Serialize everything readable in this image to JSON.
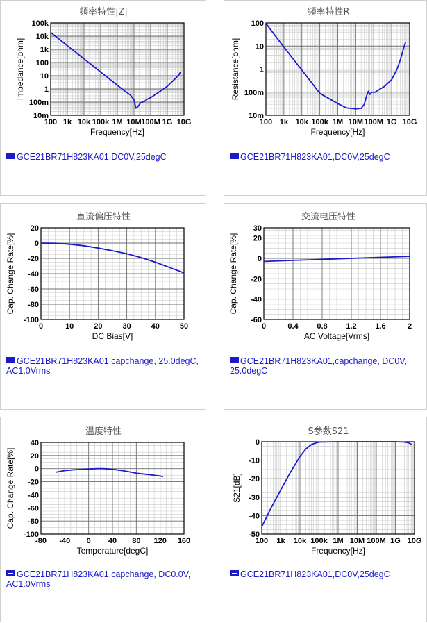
{
  "charts": [
    {
      "id": "c1",
      "title": "頻率特性|Z|",
      "legend": "GCE21BR71H823KA01,DC0V,25degC",
      "chart_data": {
        "type": "line",
        "title": "頻率特性|Z|",
        "xlabel": "Frequency[Hz]",
        "ylabel": "Impedance[ohm]",
        "xscale": "log",
        "yscale": "log",
        "xlim": [
          100,
          10000000000
        ],
        "ylim": [
          0.01,
          100000
        ],
        "xticks": [
          100,
          1000,
          10000,
          100000,
          1000000,
          10000000,
          100000000,
          1000000000,
          10000000000
        ],
        "xticklabels": [
          "100",
          "1k",
          "10k",
          "100k",
          "1M",
          "10M",
          "100M",
          "1G",
          "10G"
        ],
        "yticks": [
          0.01,
          0.1,
          1,
          10,
          100,
          1000,
          10000,
          100000
        ],
        "yticklabels": [
          "10m",
          "100m",
          "1",
          "10",
          "100",
          "1k",
          "10k",
          "100k"
        ],
        "grid": true,
        "series": [
          {
            "color": "#1a1acc",
            "x": [
              100,
              1000,
              10000,
              100000,
              1000000,
              3000000,
              6000000,
              10000000,
              13000000,
              17000000,
              25000000,
              40000000,
              60000000,
              100000000,
              300000000,
              1000000000,
              3000000000,
              5000000000,
              6000000000
            ],
            "y": [
              19000,
              1900,
              190,
              19,
              1.9,
              0.65,
              0.35,
              0.15,
              0.035,
              0.045,
              0.09,
              0.11,
              0.16,
              0.22,
              0.55,
              1.6,
              6,
              12,
              18
            ]
          }
        ]
      }
    },
    {
      "id": "c2",
      "title": "頻率特性R",
      "legend": "GCE21BR71H823KA01,DC0V,25degC",
      "chart_data": {
        "type": "line",
        "title": "頻率特性R",
        "xlabel": "Frequency[Hz]",
        "ylabel": "Resistance[ohm]",
        "xscale": "log",
        "yscale": "log",
        "xlim": [
          100,
          10000000000
        ],
        "ylim": [
          0.01,
          100
        ],
        "xticks": [
          100,
          1000,
          10000,
          100000,
          1000000,
          10000000,
          100000000,
          1000000000,
          10000000000
        ],
        "xticklabels": [
          "100",
          "1k",
          "10k",
          "100k",
          "1M",
          "10M",
          "100M",
          "1G",
          "10G"
        ],
        "yticks": [
          0.01,
          0.1,
          1,
          10,
          100
        ],
        "yticklabels": [
          "10m",
          "100m",
          "1",
          "10",
          "100"
        ],
        "grid": true,
        "series": [
          {
            "color": "#1a1acc",
            "x": [
              100,
              1000,
              10000,
              100000,
              1000000,
              3000000,
              10000000,
              20000000,
              30000000,
              40000000,
              50000000,
              60000000,
              80000000,
              120000000,
              200000000,
              400000000,
              1000000000,
              2000000000,
              3000000000,
              5000000000,
              6000000000
            ],
            "y": [
              95,
              9,
              0.9,
              0.09,
              0.032,
              0.021,
              0.019,
              0.02,
              0.03,
              0.07,
              0.11,
              0.08,
              0.1,
              0.1,
              0.13,
              0.18,
              0.35,
              1,
              2.5,
              10,
              15
            ]
          }
        ]
      }
    },
    {
      "id": "c3",
      "title": "直流偏压特性",
      "legend": "GCE21BR71H823KA01,capchange, 25.0degC, AC1.0Vrms",
      "chart_data": {
        "type": "line",
        "title": "直流偏压特性",
        "xlabel": "DC Bias[V]",
        "ylabel": "Cap. Change Rate[%]",
        "xlim": [
          0,
          50
        ],
        "ylim": [
          -100,
          20
        ],
        "xticks": [
          0,
          10,
          20,
          30,
          40,
          50
        ],
        "yticks": [
          -100,
          -80,
          -60,
          -40,
          -20,
          0,
          20
        ],
        "grid": true,
        "series": [
          {
            "color": "#1a1acc",
            "x": [
              0,
              5,
              10,
              15,
              20,
              25,
              30,
              35,
              40,
              45,
              50
            ],
            "y": [
              0,
              -0.3,
              -1.5,
              -3.5,
              -6.5,
              -10,
              -14,
              -19,
              -25,
              -32,
              -39
            ]
          }
        ]
      }
    },
    {
      "id": "c4",
      "title": "交流电压特性",
      "legend": "GCE21BR71H823KA01,capchange, DC0V, 25.0degC",
      "chart_data": {
        "type": "line",
        "title": "交流电压特性",
        "xlabel": "AC Voltage[Vrms]",
        "ylabel": "Cap. Change Rate[%]",
        "xlim": [
          0,
          2
        ],
        "ylim": [
          -60,
          30
        ],
        "xticks": [
          0,
          0.4,
          0.8,
          1.2,
          1.6,
          2
        ],
        "yticks": [
          -60,
          -40,
          -20,
          0,
          20,
          30
        ],
        "grid": true,
        "series": [
          {
            "color": "#1a1acc",
            "x": [
              0,
              0.4,
              0.8,
              1.2,
              1.6,
              2
            ],
            "y": [
              -3,
              -2,
              -1,
              0,
              1,
              2
            ]
          }
        ]
      }
    },
    {
      "id": "c5",
      "title": "温度特性",
      "legend": "GCE21BR71H823KA01,capchange, DC0.0V, AC1.0Vrms",
      "chart_data": {
        "type": "line",
        "title": "温度特性",
        "xlabel": "Temperature[degC]",
        "ylabel": "Cap. Change Rate[%]",
        "xlim": [
          -80,
          160
        ],
        "ylim": [
          -100,
          40
        ],
        "xticks": [
          -80,
          -40,
          0,
          40,
          80,
          120,
          160
        ],
        "yticks": [
          -100,
          -80,
          -60,
          -40,
          -20,
          0,
          20,
          40
        ],
        "grid": true,
        "series": [
          {
            "color": "#1a1acc",
            "x": [
              -55,
              -40,
              -20,
              0,
              15,
              25,
              40,
              60,
              80,
              100,
              125
            ],
            "y": [
              -5.5,
              -3,
              -1.5,
              -0.5,
              0,
              0,
              -1,
              -3.5,
              -7,
              -9,
              -12
            ]
          }
        ]
      }
    },
    {
      "id": "c6",
      "title": "S参数S21",
      "legend": "GCE21BR71H823KA01,DC0V,25degC",
      "chart_data": {
        "type": "line",
        "title": "S参数S21",
        "xlabel": "Frequency[Hz]",
        "ylabel": "S21[dB]",
        "xscale": "log",
        "xlim": [
          100,
          10000000000
        ],
        "ylim": [
          -50,
          0
        ],
        "xticks": [
          100,
          1000,
          10000,
          100000,
          1000000,
          10000000,
          100000000,
          1000000000,
          10000000000
        ],
        "xticklabels": [
          "100",
          "1k",
          "10k",
          "100k",
          "1M",
          "10M",
          "100M",
          "1G",
          "10G"
        ],
        "yticks": [
          -50,
          -40,
          -30,
          -20,
          -10,
          0
        ],
        "grid": true,
        "series": [
          {
            "color": "#1a1acc",
            "x": [
              100,
              300,
              1000,
              3000,
              10000,
              20000,
              40000,
              70000,
              100000,
              1000000,
              100000000,
              1000000000,
              3000000000,
              5000000000,
              7000000000
            ],
            "y": [
              -46,
              -36,
              -26,
              -17,
              -8,
              -4,
              -1.5,
              -0.6,
              -0.2,
              0,
              0,
              0,
              -0.2,
              -0.6,
              -1.5
            ]
          }
        ]
      }
    }
  ]
}
